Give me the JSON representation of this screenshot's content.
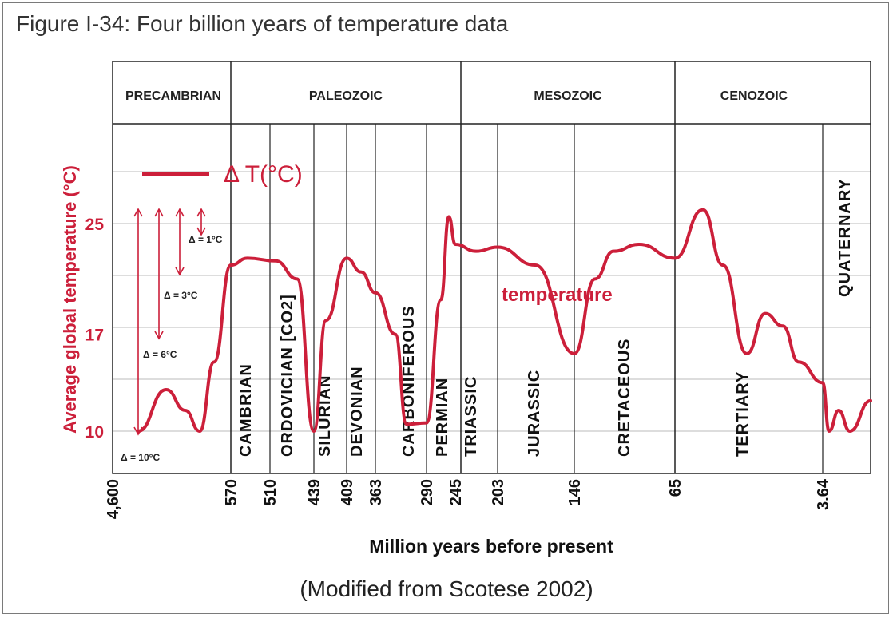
{
  "figure_title": "Figure I-34: Four billion years of temperature data",
  "source_note": "(Modified from Scotese 2002)",
  "colors": {
    "curve": "#cc1f3a",
    "axis_text": "#111111",
    "grid": "#bbbbbb"
  },
  "chart_data": {
    "type": "line",
    "xlabel": "Million years before present",
    "ylabel": "Average global temperature (°C)",
    "y_ticks": [
      10,
      17,
      25
    ],
    "ylim": [
      7,
      29
    ],
    "x_ticks": [
      "4,600",
      "570",
      "510",
      "439",
      "409",
      "363",
      "290",
      "245",
      "203",
      "146",
      "65",
      "3.64"
    ],
    "x_scale": "non-linear (geologic time divisions)",
    "grid": true,
    "eras": [
      "PRECAMBRIAN",
      "PALEOZOIC",
      "MESOZOIC",
      "CENOZOIC"
    ],
    "periods": [
      "CAMBRIAN",
      "ORDOVICIAN [CO2]",
      "SILURIAN",
      "DEVONIAN",
      "CARBONIFEROUS",
      "PERMIAN",
      "TRIASSIC",
      "JURASSIC",
      "CRETACEOUS",
      "TERTIARY",
      "QUATERNARY"
    ],
    "legend": {
      "symbol_label": "Δ T(°C)"
    },
    "delta_markers": [
      "Δ = 1°C",
      "Δ = 3°C",
      "Δ = 6°C",
      "Δ = 10°C"
    ],
    "curve_label": "temperature",
    "series": [
      {
        "name": "temperature",
        "points": [
          [
            "4,600",
            10.0
          ],
          [
            "~3,000",
            13.0
          ],
          [
            "~1,500",
            11.5
          ],
          [
            "~800",
            10.0
          ],
          [
            "~620",
            15.0
          ],
          [
            "570",
            22.0
          ],
          [
            "530",
            22.5
          ],
          [
            "480",
            22.3
          ],
          [
            "455",
            21.0
          ],
          [
            "439",
            10.0
          ],
          [
            "430",
            18.0
          ],
          [
            "409",
            22.5
          ],
          [
            "375",
            21.5
          ],
          [
            "363",
            20.0
          ],
          [
            "330",
            17.0
          ],
          [
            "300",
            10.5
          ],
          [
            "290",
            10.6
          ],
          [
            "270",
            19.5
          ],
          [
            "252",
            25.5
          ],
          [
            "245",
            23.5
          ],
          [
            "220",
            23.0
          ],
          [
            "203",
            23.3
          ],
          [
            "175",
            22.0
          ],
          [
            "146",
            15.6
          ],
          [
            "120",
            21.0
          ],
          [
            "100",
            23.0
          ],
          [
            "80",
            23.5
          ],
          [
            "65",
            22.5
          ],
          [
            "55",
            26.0
          ],
          [
            "40",
            22.0
          ],
          [
            "25",
            15.6
          ],
          [
            "15",
            18.5
          ],
          [
            "8",
            17.6
          ],
          [
            "5",
            15.0
          ],
          [
            "3.64",
            13.5
          ],
          [
            "3",
            10.0
          ],
          [
            "2",
            11.5
          ],
          [
            "1",
            10.0
          ],
          [
            "0",
            12.2
          ]
        ]
      }
    ]
  }
}
